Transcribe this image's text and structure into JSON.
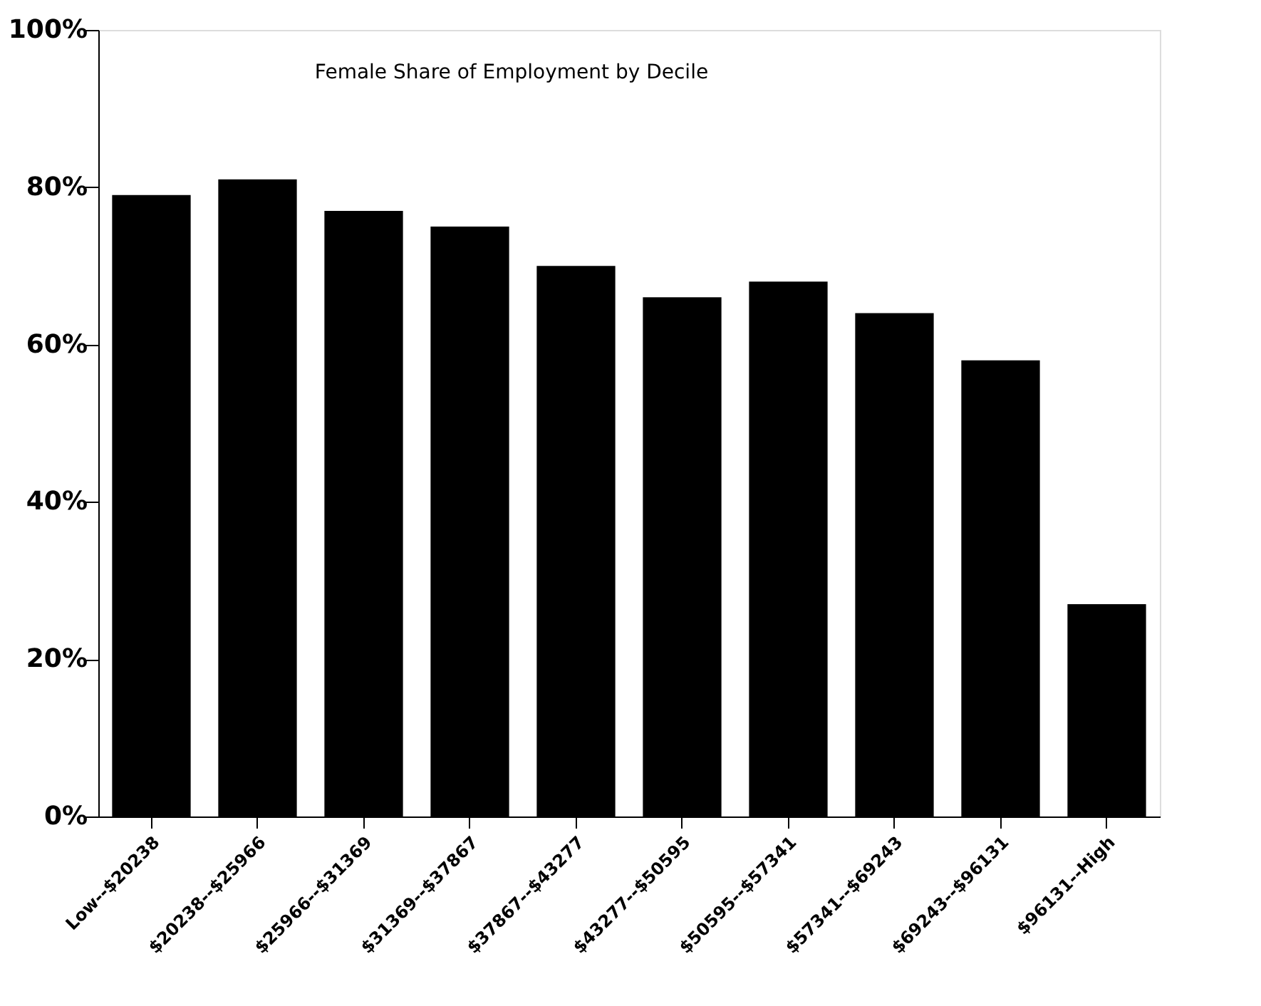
{
  "chart_data": {
    "type": "bar",
    "title": "Female Share of Employment by Decile",
    "categories": [
      "Low--$20238",
      "$20238--$25966",
      "$25966--$31369",
      "$31369--$37867",
      "$37867--$43277",
      "$43277--$50595",
      "$50595--$57341",
      "$57341--$69243",
      "$69243--$96131",
      "$96131--High"
    ],
    "values": [
      79,
      81,
      77,
      75,
      70,
      66,
      68,
      64,
      58,
      27
    ],
    "color": "#000000",
    "ylim": [
      0,
      100
    ],
    "yticks": [
      {
        "value": 0,
        "label": "0%"
      },
      {
        "value": 20,
        "label": "20%"
      },
      {
        "value": 40,
        "label": "40%"
      },
      {
        "value": 60,
        "label": "60%"
      },
      {
        "value": 80,
        "label": "80%"
      },
      {
        "value": 100,
        "label": "100%"
      }
    ],
    "grid": false
  }
}
